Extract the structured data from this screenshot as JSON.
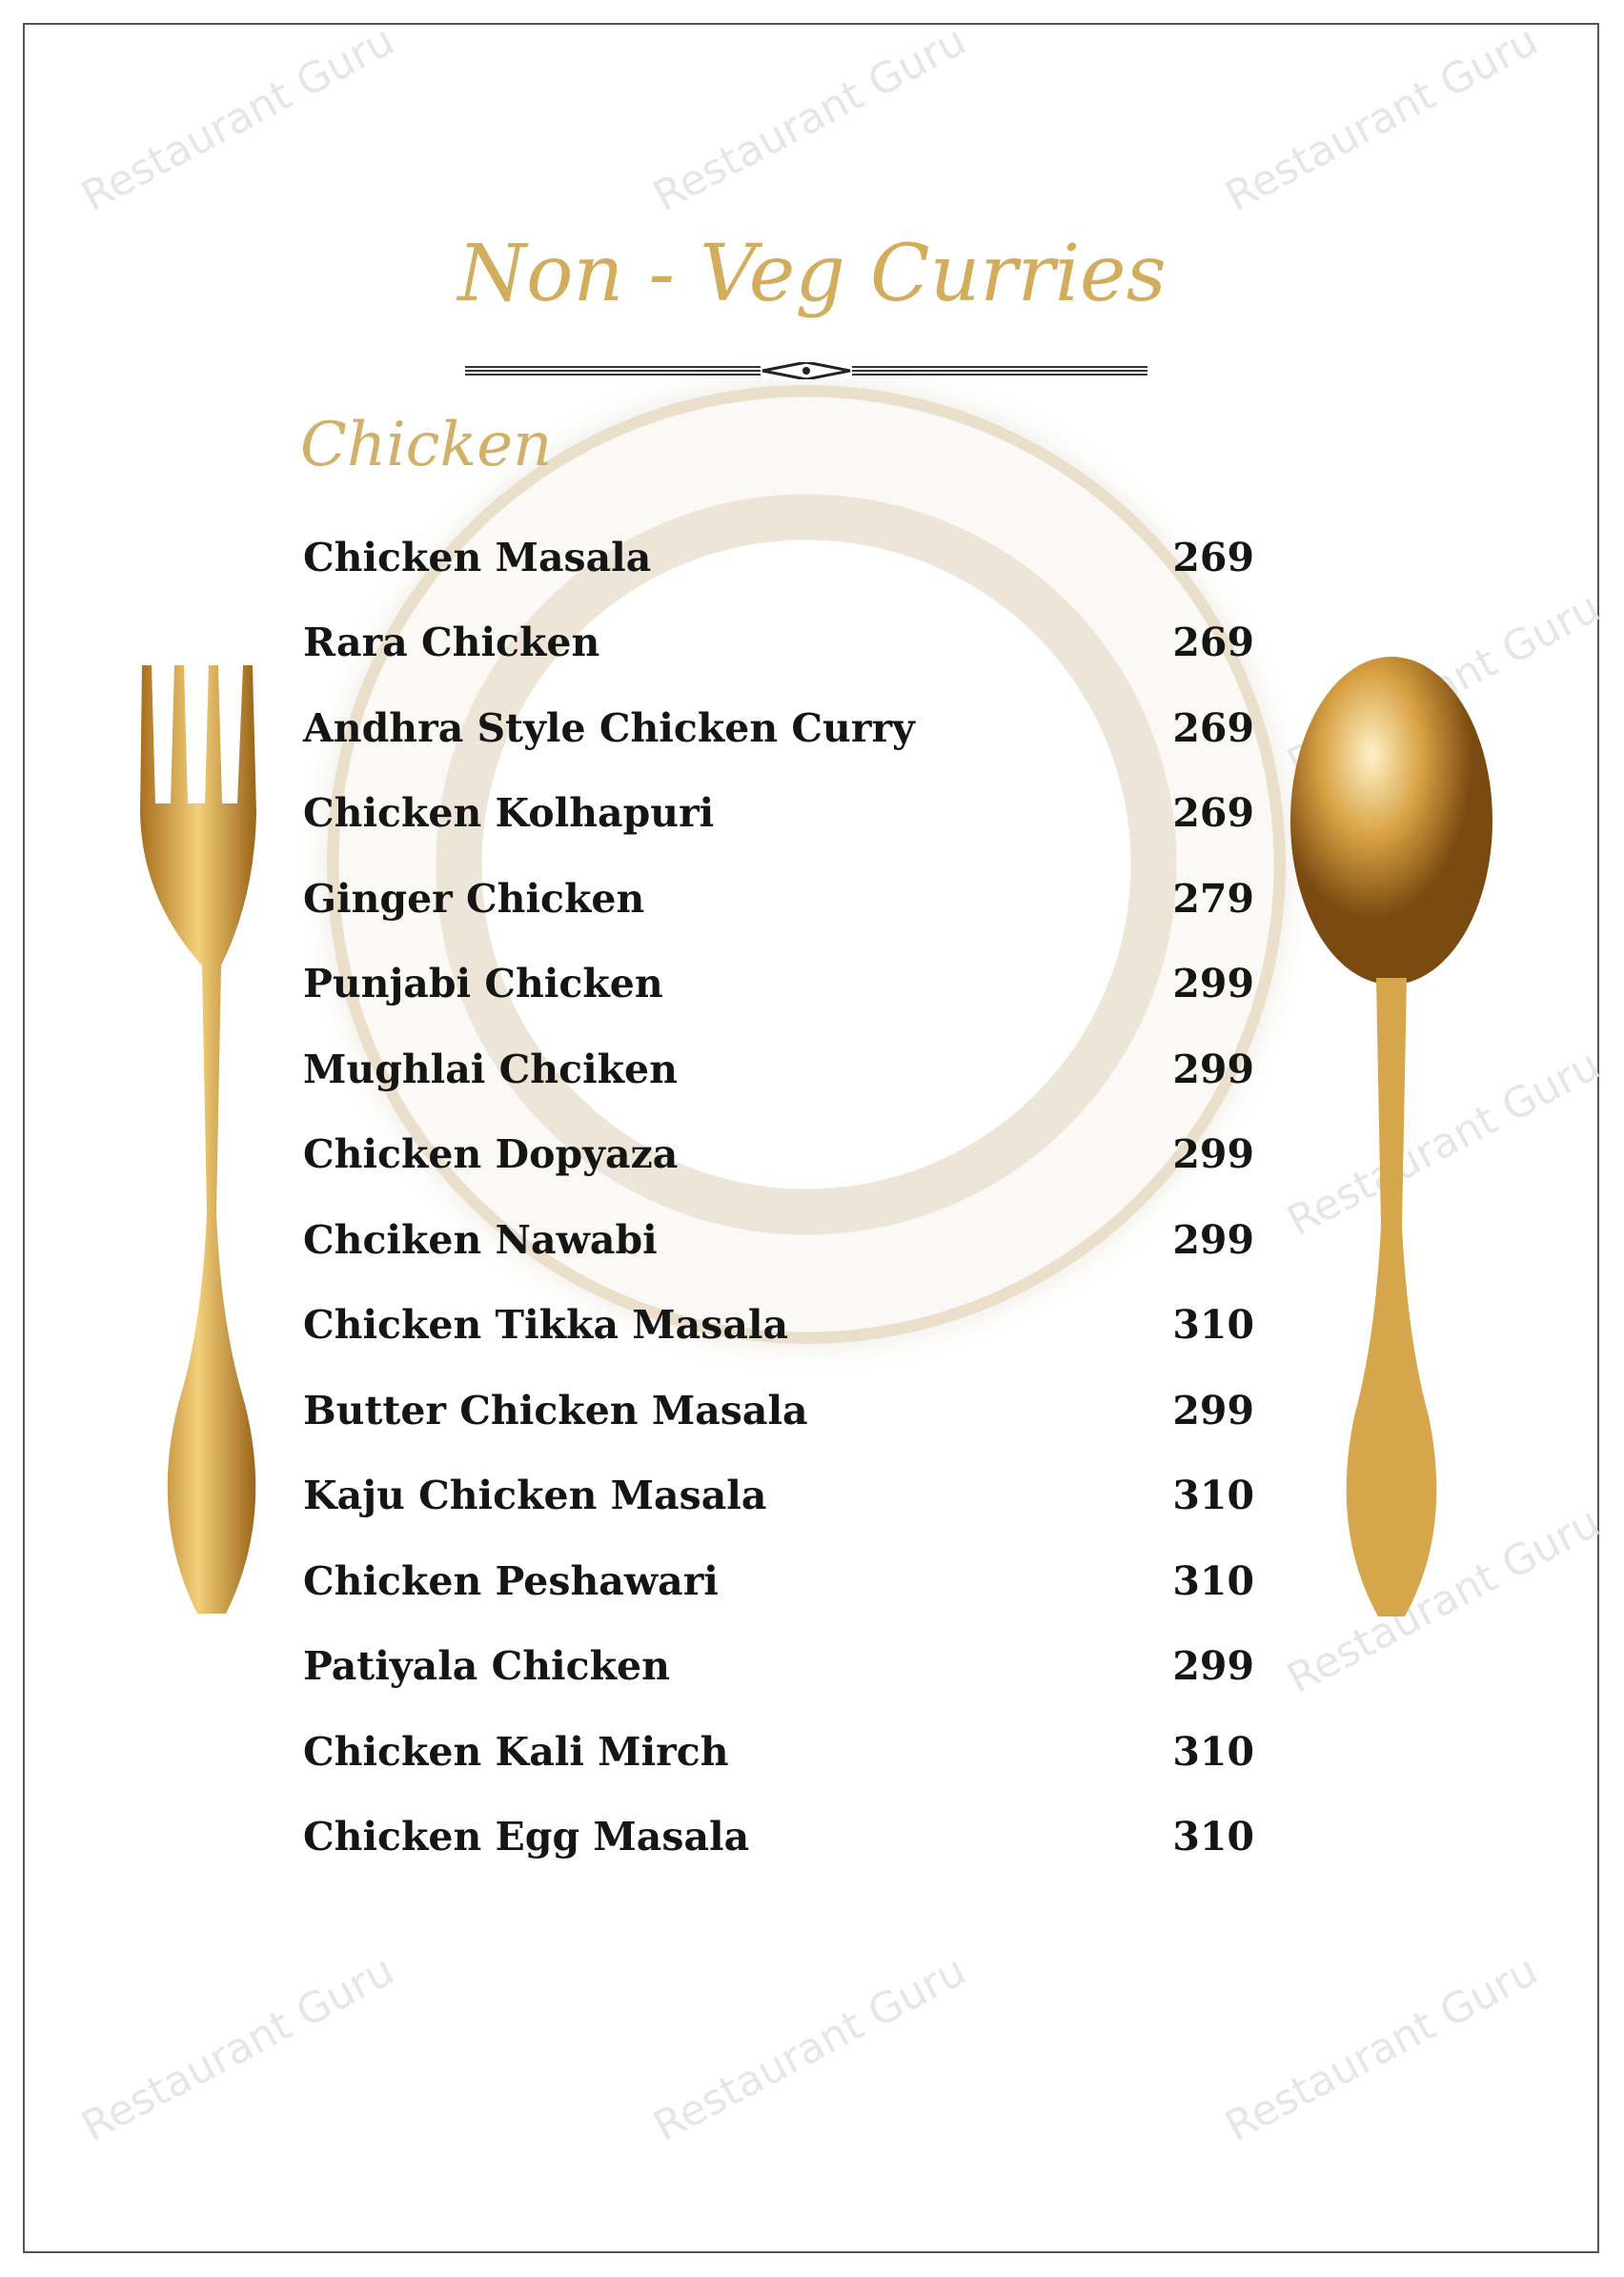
{
  "watermark": "Restaurant Guru",
  "title": "Non - Veg Curries",
  "section": "Chicken",
  "items": [
    {
      "name": "Chicken Masala",
      "price": "269"
    },
    {
      "name": "Rara Chicken",
      "price": "269"
    },
    {
      "name": "Andhra Style Chicken Curry",
      "price": "269"
    },
    {
      "name": "Chicken Kolhapuri",
      "price": "269"
    },
    {
      "name": "Ginger Chicken",
      "price": "279"
    },
    {
      "name": "Punjabi Chicken",
      "price": "299"
    },
    {
      "name": "Mughlai Chciken",
      "price": "299"
    },
    {
      "name": "Chicken Dopyaza",
      "price": "299"
    },
    {
      "name": "Chciken Nawabi",
      "price": "299"
    },
    {
      "name": "Chicken Tikka Masala",
      "price": "310"
    },
    {
      "name": "Butter Chicken Masala",
      "price": "299"
    },
    {
      "name": "Kaju Chicken Masala",
      "price": "310"
    },
    {
      "name": "Chicken Peshawari",
      "price": "310"
    },
    {
      "name": "Patiyala Chicken",
      "price": "299"
    },
    {
      "name": "Chicken Kali Mirch",
      "price": "310"
    },
    {
      "name": "Chicken Egg Masala",
      "price": "310"
    }
  ],
  "colors": {
    "accent": "#d2ad5e",
    "text": "#151515",
    "gold": "#c8952e"
  }
}
